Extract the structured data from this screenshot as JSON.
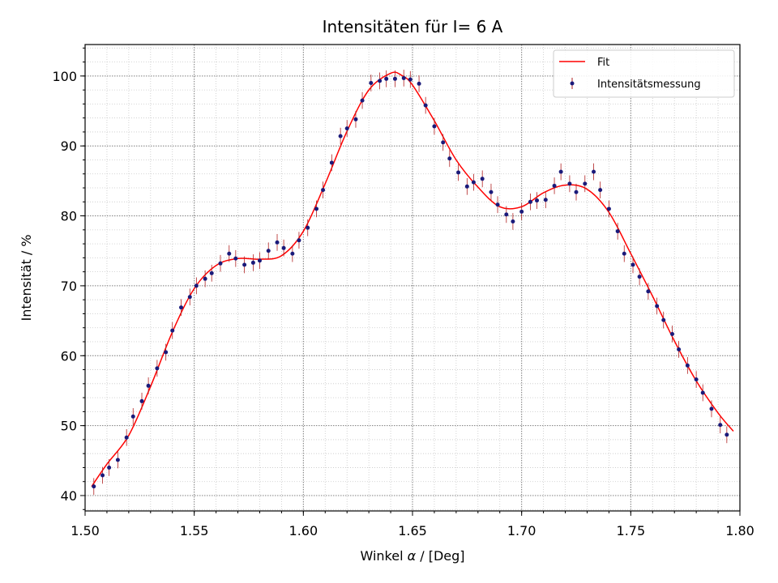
{
  "chart_data": {
    "type": "scatter",
    "title": "Intensitäten für I= 6 A",
    "xlabel_prefix": "Winkel ",
    "xlabel_symbol": "α",
    "xlabel_suffix": " / [Deg]",
    "ylabel": "Intensität / %",
    "xlim": [
      1.5,
      1.8
    ],
    "ylim": [
      37.8,
      104.5
    ],
    "xticks": [
      1.5,
      1.55,
      1.6,
      1.65,
      1.7,
      1.75,
      1.8
    ],
    "xtick_labels": [
      "1.50",
      "1.55",
      "1.60",
      "1.65",
      "1.70",
      "1.75",
      "1.80"
    ],
    "yticks": [
      40,
      50,
      60,
      70,
      80,
      90,
      100
    ],
    "ytick_labels": [
      "40",
      "50",
      "60",
      "70",
      "80",
      "90",
      "100"
    ],
    "grid": true,
    "legend_position": "top-right",
    "colors": {
      "fit": "#ff0000",
      "points": "#1a1a7a",
      "errorbars": "#b22222",
      "grid": "#808080"
    },
    "series": [
      {
        "name": "Fit",
        "kind": "line",
        "x": [
          1.503,
          1.51,
          1.52,
          1.53,
          1.54,
          1.55,
          1.56,
          1.57,
          1.58,
          1.59,
          1.6,
          1.61,
          1.62,
          1.63,
          1.64,
          1.645,
          1.65,
          1.66,
          1.67,
          1.68,
          1.69,
          1.7,
          1.71,
          1.72,
          1.73,
          1.74,
          1.75,
          1.76,
          1.77,
          1.78,
          1.79,
          1.797
        ],
        "y": [
          41.3,
          44.5,
          48.6,
          55.6,
          63.4,
          69.6,
          72.9,
          73.9,
          73.8,
          74.3,
          77.8,
          84.6,
          92.1,
          98.0,
          100.4,
          100.1,
          98.7,
          93.6,
          88.0,
          84.1,
          81.3,
          81.3,
          83.3,
          84.4,
          83.8,
          80.5,
          74.6,
          68.5,
          62.1,
          56.4,
          51.8,
          49.2
        ]
      },
      {
        "name": "Intensitätsmessung",
        "kind": "errorbar",
        "x": [
          1.504,
          1.508,
          1.511,
          1.515,
          1.519,
          1.522,
          1.526,
          1.529,
          1.533,
          1.537,
          1.54,
          1.544,
          1.548,
          1.551,
          1.555,
          1.558,
          1.562,
          1.566,
          1.569,
          1.573,
          1.577,
          1.58,
          1.584,
          1.588,
          1.591,
          1.595,
          1.598,
          1.602,
          1.606,
          1.609,
          1.613,
          1.617,
          1.62,
          1.624,
          1.627,
          1.631,
          1.635,
          1.638,
          1.642,
          1.646,
          1.649,
          1.653,
          1.656,
          1.66,
          1.664,
          1.667,
          1.671,
          1.675,
          1.678,
          1.682,
          1.686,
          1.689,
          1.693,
          1.696,
          1.7,
          1.704,
          1.707,
          1.711,
          1.715,
          1.718,
          1.722,
          1.725,
          1.729,
          1.733,
          1.736,
          1.74,
          1.744,
          1.747,
          1.751,
          1.754,
          1.758,
          1.762,
          1.765,
          1.769,
          1.772,
          1.776,
          1.78,
          1.783,
          1.787,
          1.791,
          1.794
        ],
        "y": [
          41.3,
          42.9,
          44.0,
          45.1,
          48.3,
          51.3,
          53.5,
          55.7,
          58.2,
          60.5,
          63.6,
          66.9,
          68.4,
          70.0,
          71.0,
          71.8,
          73.2,
          74.6,
          73.9,
          73.0,
          73.3,
          73.6,
          75.0,
          76.2,
          75.4,
          74.6,
          76.5,
          78.3,
          81.0,
          83.7,
          87.6,
          91.4,
          92.5,
          93.8,
          96.5,
          99.0,
          99.3,
          99.6,
          99.6,
          99.7,
          99.5,
          98.9,
          95.8,
          92.8,
          90.5,
          88.2,
          86.2,
          84.2,
          84.8,
          85.3,
          83.4,
          81.6,
          80.2,
          79.2,
          80.6,
          82.0,
          82.2,
          82.3,
          84.3,
          86.3,
          84.6,
          83.4,
          84.6,
          86.3,
          83.7,
          81.0,
          77.8,
          74.6,
          73.0,
          71.3,
          69.2,
          67.1,
          65.1,
          63.1,
          60.9,
          58.6,
          56.6,
          54.7,
          52.4,
          50.1,
          48.7
        ],
        "yerr": 1.2
      }
    ]
  }
}
